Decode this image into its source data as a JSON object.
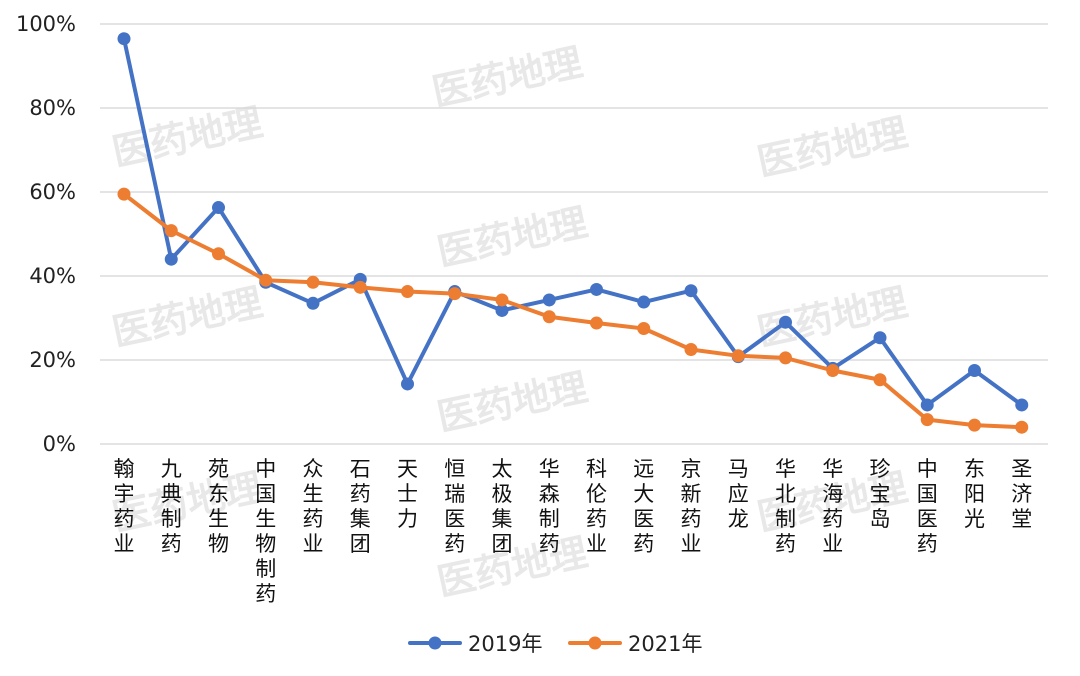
{
  "chart_data": {
    "type": "line",
    "categories": [
      "翰宇药业",
      "九典制药",
      "苑东生物",
      "中国生物制药",
      "众生药业",
      "石药集团",
      "天士力",
      "恒瑞医药",
      "太极集团",
      "华森制药",
      "科伦药业",
      "远大医药",
      "京新药业",
      "马应龙",
      "华北制药",
      "华海药业",
      "珍宝岛",
      "中国医药",
      "东阳光",
      "圣济堂"
    ],
    "series": [
      {
        "name": "2019年",
        "color": "#4472C4",
        "values": [
          0.965,
          0.44,
          0.563,
          0.385,
          0.335,
          0.392,
          0.143,
          0.363,
          0.318,
          0.343,
          0.368,
          0.338,
          0.365,
          0.208,
          0.29,
          0.18,
          0.253,
          0.093,
          0.175,
          0.093
        ]
      },
      {
        "name": "2021年",
        "color": "#ED7D31",
        "values": [
          0.595,
          0.508,
          0.453,
          0.39,
          0.385,
          0.373,
          0.363,
          0.358,
          0.343,
          0.303,
          0.288,
          0.275,
          0.225,
          0.21,
          0.205,
          0.175,
          0.153,
          0.058,
          0.045,
          0.04
        ]
      }
    ],
    "ylim": [
      0,
      1
    ],
    "yticks": [
      0,
      0.2,
      0.4,
      0.6,
      0.8,
      1.0
    ],
    "ytick_labels": [
      "0%",
      "20%",
      "40%",
      "60%",
      "80%",
      "100%"
    ],
    "grid": true,
    "legend_position": "bottom",
    "watermark": "医药地理"
  }
}
